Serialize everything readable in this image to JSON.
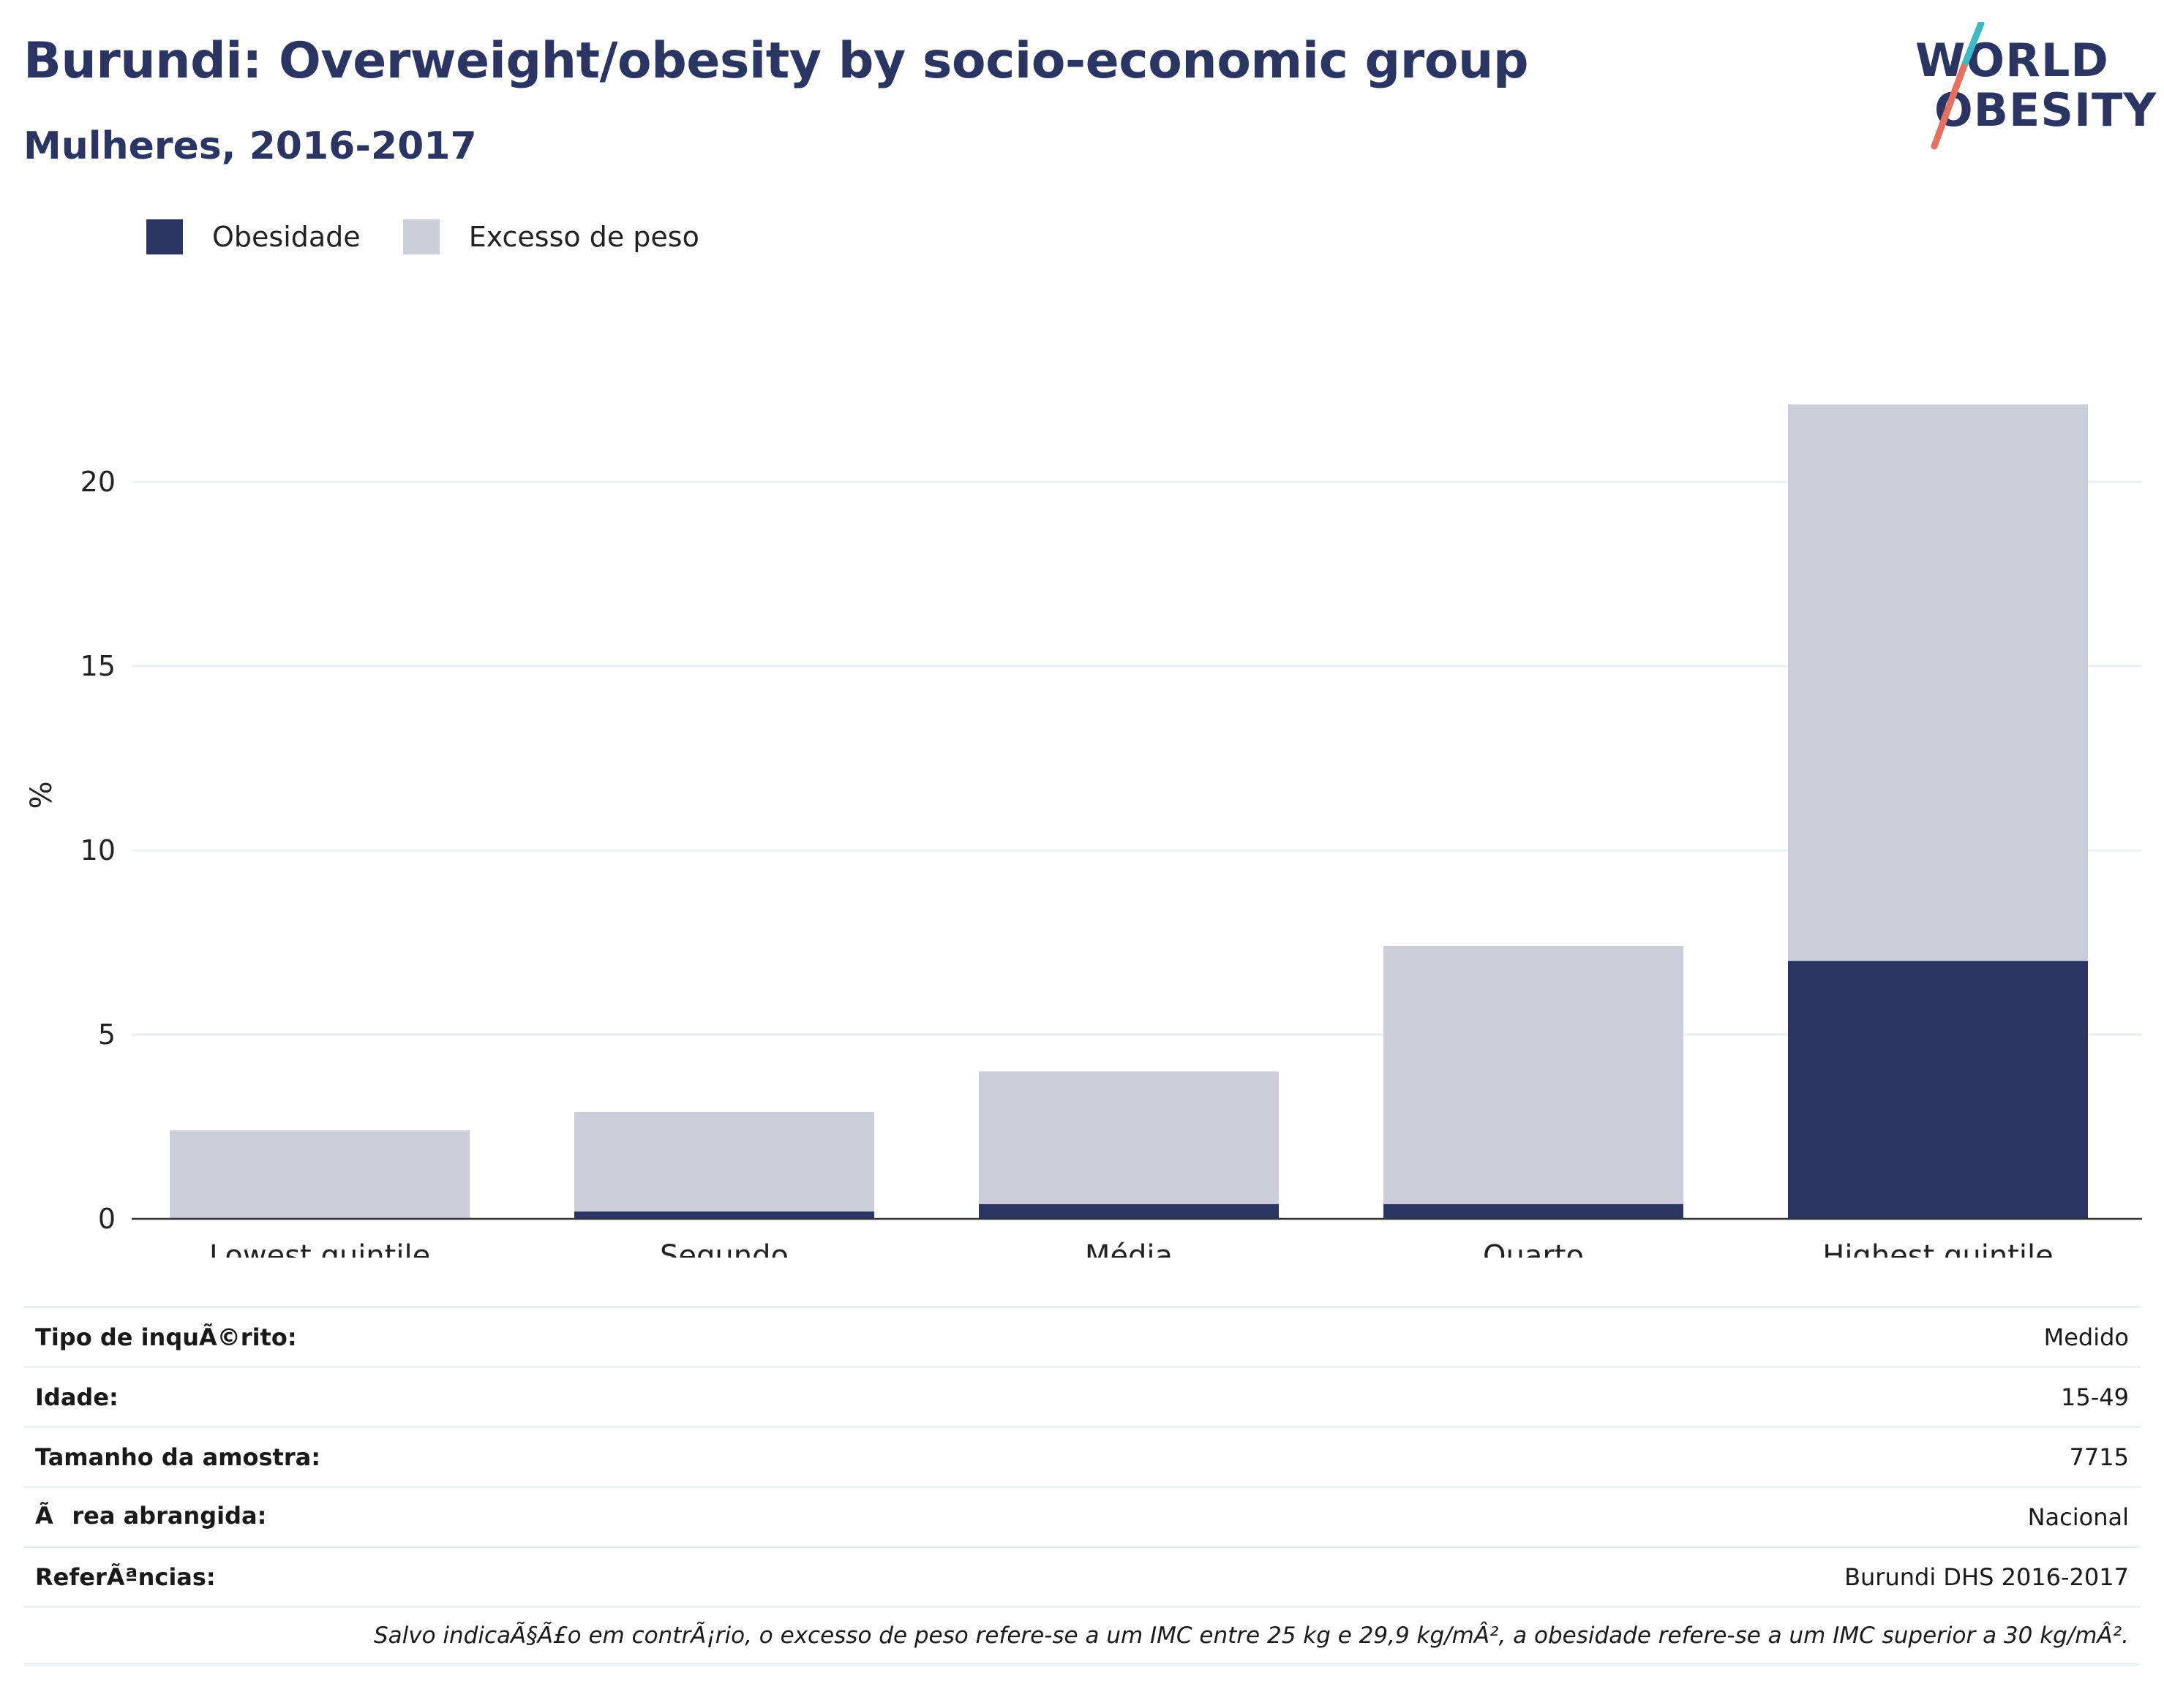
{
  "header": {
    "title": "Burundi: Overweight/obesity by socio-economic group",
    "subtitle": "Mulheres, 2016-2017",
    "logo_line1": "WORLD",
    "logo_line2": "OBESITY"
  },
  "legend": {
    "obesity_label": "Obesidade",
    "overweight_label": "Excesso de peso"
  },
  "colors": {
    "obesity": "#2b3564",
    "overweight": "#cbcdd8",
    "title": "#2b3564",
    "logo_accent_teal": "#3cbac6",
    "logo_accent_coral": "#e76f5f"
  },
  "chart_data": {
    "type": "bar",
    "stacked": true,
    "title": "Burundi: Overweight/obesity by socio-economic group",
    "subtitle": "Mulheres, 2016-2017",
    "xlabel": "",
    "ylabel": "%",
    "ylim": [
      0,
      23
    ],
    "yticks": [
      0,
      5,
      10,
      15,
      20
    ],
    "grid": true,
    "legend_position": "top-left",
    "categories": [
      "Lowest quintile",
      "Segundo",
      "Média",
      "Quarto",
      "Highest quintile"
    ],
    "series": [
      {
        "name": "Obesidade",
        "values": [
          0.0,
          0.2,
          0.4,
          0.4,
          7.0
        ]
      },
      {
        "name": "Excesso de peso",
        "values": [
          2.4,
          2.7,
          3.6,
          7.0,
          15.1
        ]
      }
    ]
  },
  "info": {
    "rows": [
      {
        "key": "Tipo de inquÃ©rito:",
        "value": "Medido"
      },
      {
        "key": "Idade:",
        "value": "15-49"
      },
      {
        "key": "Tamanho da amostra:",
        "value": "7715"
      },
      {
        "key": "Ãrea abrangida:",
        "value": "Nacional"
      },
      {
        "key": "ReferÃªncias:",
        "value": "Burundi DHS 2016-2017"
      }
    ],
    "note": "Salvo indicaÃ§Ã£o em contrÃ¡rio, o excesso de peso refere-se a um IMC entre 25 kg e 29,9 kg/mÂ², a obesidade refere-se a um IMC superior a 30 kg/mÂ²."
  }
}
